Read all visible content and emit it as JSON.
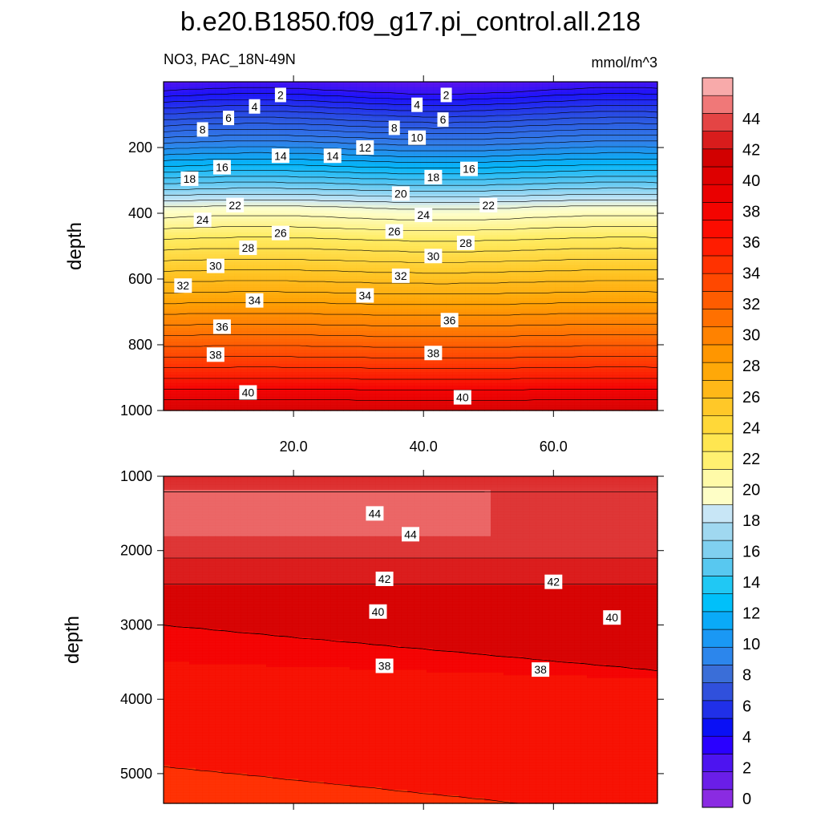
{
  "chart_data": {
    "type": "contour",
    "title": "b.e20.B1850.f09_g17.pi_control.all.218",
    "variable_label": "NO3, PAC_18N-49N",
    "units_label": "mmol/m^3",
    "xlim": [
      0,
      76
    ],
    "x_ticks": [
      20,
      40,
      60
    ],
    "x_tick_labels": [
      "20.0",
      "40.0",
      "60.0"
    ],
    "colorbar": {
      "levels": [
        0,
        2,
        4,
        6,
        8,
        10,
        12,
        14,
        16,
        18,
        20,
        22,
        24,
        26,
        28,
        30,
        32,
        34,
        36,
        38,
        40,
        42,
        44
      ],
      "colors": [
        "#8a2be2",
        "#6a1ee8",
        "#4d14f0",
        "#2a00ff",
        "#0a10f5",
        "#2030e8",
        "#3050dc",
        "#3a6ed8",
        "#2c86ec",
        "#1a98f4",
        "#0aaaf8",
        "#00c0fa",
        "#20c8f4",
        "#58c8f0",
        "#80d0f0",
        "#a0d8f0",
        "#c8e6f6",
        "#fefec6",
        "#fffaa8",
        "#fff070",
        "#ffe650",
        "#ffd838",
        "#ffc828",
        "#ffb818",
        "#ffa808",
        "#ff9600",
        "#ff8200",
        "#ff7000",
        "#ff5c00",
        "#ff4800",
        "#ff3200",
        "#ff1c00",
        "#fc0c00",
        "#f40400",
        "#ea0000",
        "#de0000",
        "#d20000",
        "#d81c1c",
        "#e44444",
        "#f07878",
        "#f8aaaa"
      ],
      "tick_labels": [
        "0",
        "2",
        "4",
        "6",
        "8",
        "10",
        "12",
        "14",
        "16",
        "18",
        "20",
        "22",
        "24",
        "26",
        "28",
        "30",
        "32",
        "34",
        "36",
        "38",
        "40",
        "42",
        "44"
      ]
    },
    "panels": [
      {
        "name": "upper",
        "ylabel": "depth",
        "ylim": [
          1000,
          0
        ],
        "y_ticks": [
          200,
          400,
          600,
          800,
          1000
        ],
        "y_tick_labels": [
          "200",
          "400",
          "600",
          "800",
          "1000"
        ],
        "contour_labels": [
          {
            "text": "2",
            "x": 18,
            "y": 40
          },
          {
            "text": "2",
            "x": 43.5,
            "y": 40
          },
          {
            "text": "4",
            "x": 14,
            "y": 75
          },
          {
            "text": "4",
            "x": 39,
            "y": 70
          },
          {
            "text": "6",
            "x": 10,
            "y": 110
          },
          {
            "text": "6",
            "x": 43,
            "y": 115
          },
          {
            "text": "8",
            "x": 6,
            "y": 145
          },
          {
            "text": "8",
            "x": 35.5,
            "y": 140
          },
          {
            "text": "10",
            "x": 39,
            "y": 170
          },
          {
            "text": "12",
            "x": 31,
            "y": 200
          },
          {
            "text": "14",
            "x": 18,
            "y": 225
          },
          {
            "text": "14",
            "x": 26,
            "y": 225
          },
          {
            "text": "16",
            "x": 9,
            "y": 260
          },
          {
            "text": "16",
            "x": 47,
            "y": 265
          },
          {
            "text": "18",
            "x": 4,
            "y": 295
          },
          {
            "text": "18",
            "x": 41.5,
            "y": 290
          },
          {
            "text": "20",
            "x": 36.5,
            "y": 340
          },
          {
            "text": "22",
            "x": 11,
            "y": 375
          },
          {
            "text": "22",
            "x": 50,
            "y": 375
          },
          {
            "text": "24",
            "x": 6,
            "y": 420
          },
          {
            "text": "24",
            "x": 40,
            "y": 405
          },
          {
            "text": "26",
            "x": 18,
            "y": 460
          },
          {
            "text": "26",
            "x": 35.5,
            "y": 455
          },
          {
            "text": "28",
            "x": 13,
            "y": 505
          },
          {
            "text": "28",
            "x": 46.5,
            "y": 490
          },
          {
            "text": "30",
            "x": 8,
            "y": 560
          },
          {
            "text": "30",
            "x": 41.5,
            "y": 530
          },
          {
            "text": "32",
            "x": 3,
            "y": 620
          },
          {
            "text": "32",
            "x": 36.5,
            "y": 590
          },
          {
            "text": "34",
            "x": 14,
            "y": 665
          },
          {
            "text": "34",
            "x": 31,
            "y": 650
          },
          {
            "text": "36",
            "x": 9,
            "y": 745
          },
          {
            "text": "36",
            "x": 44,
            "y": 725
          },
          {
            "text": "38",
            "x": 8,
            "y": 830
          },
          {
            "text": "38",
            "x": 41.5,
            "y": 825
          },
          {
            "text": "40",
            "x": 13,
            "y": 945
          },
          {
            "text": "40",
            "x": 46,
            "y": 960
          }
        ]
      },
      {
        "name": "lower",
        "ylabel": "depth",
        "ylim": [
          5400,
          1000
        ],
        "y_ticks": [
          1000,
          2000,
          3000,
          4000,
          5000
        ],
        "y_tick_labels": [
          "1000",
          "2000",
          "3000",
          "4000",
          "5000"
        ],
        "contour_labels": [
          {
            "text": "44",
            "x": 32.5,
            "y": 1500
          },
          {
            "text": "44",
            "x": 38,
            "y": 1780
          },
          {
            "text": "42",
            "x": 34,
            "y": 2380
          },
          {
            "text": "42",
            "x": 60,
            "y": 2420
          },
          {
            "text": "40",
            "x": 33,
            "y": 2820
          },
          {
            "text": "40",
            "x": 69,
            "y": 2900
          },
          {
            "text": "38",
            "x": 34,
            "y": 3550
          },
          {
            "text": "38",
            "x": 58,
            "y": 3600
          }
        ]
      }
    ]
  }
}
